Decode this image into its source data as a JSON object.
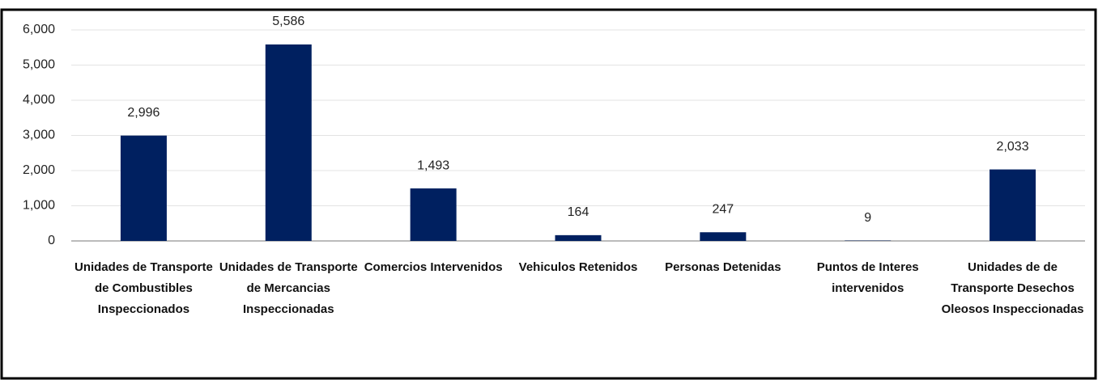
{
  "chart_data": {
    "type": "bar",
    "categories": [
      "Unidades de Transporte de Combustibles Inspeccionados",
      "Unidades de Transporte de Mercancias Inspeccionadas",
      "Comercios Intervenidos",
      "Vehiculos Retenidos",
      "Personas Detenidas",
      "Puntos de Interes intervenidos",
      "Unidades de de Transporte Desechos Oleosos Inspeccionadas"
    ],
    "values": [
      2996,
      5586,
      1493,
      164,
      247,
      9,
      2033
    ],
    "value_labels": [
      "2,996",
      "5,586",
      "1,493",
      "164",
      "247",
      "9",
      "2,033"
    ],
    "color": "#002060",
    "ylim": [
      0,
      6000
    ],
    "yticks": [
      0,
      {
        "value": 1000,
        "label": "1,000"
      },
      {
        "value": 2000,
        "label": "2,000"
      },
      {
        "value": 3000,
        "label": "3,000"
      },
      {
        "value": 4000,
        "label": "4,000"
      },
      {
        "value": 5000,
        "label": "5,000"
      },
      {
        "value": 6000,
        "label": "6,000"
      }
    ],
    "grid": true
  }
}
